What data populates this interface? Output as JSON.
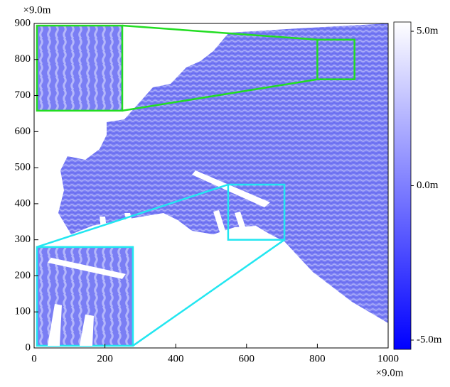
{
  "chart_data": {
    "type": "heatmap",
    "x_unit": "×9.0m",
    "y_unit": "×9.0m",
    "xlim": [
      0,
      1000
    ],
    "xticks": [
      0,
      200,
      400,
      600,
      800,
      1000
    ],
    "ylim": [
      0,
      900
    ],
    "yticks": [
      0,
      100,
      200,
      300,
      400,
      500,
      600,
      700,
      800,
      900
    ],
    "colorbar": {
      "clim": [
        -5.3,
        5.3
      ],
      "colors": [
        "#0000ff",
        "#7f7fff",
        "#ffffff"
      ],
      "ticks": [
        {
          "value": 5.0,
          "label": "5.0m"
        },
        {
          "value": 0.0,
          "label": "0.0m"
        },
        {
          "value": -5.0,
          "label": "-5.0m"
        }
      ]
    },
    "zoom_regions": [
      {
        "color": "#22dd22",
        "source_x": [
          800,
          905
        ],
        "source_y": [
          745,
          855
        ],
        "inset_x": [
          8,
          249
        ],
        "inset_y": [
          658,
          894
        ]
      },
      {
        "color": "#22e6f0",
        "source_x": [
          548,
          707
        ],
        "source_y": [
          300,
          453
        ],
        "inset_x": [
          8,
          279
        ],
        "inset_y": [
          6,
          280
        ]
      }
    ]
  }
}
